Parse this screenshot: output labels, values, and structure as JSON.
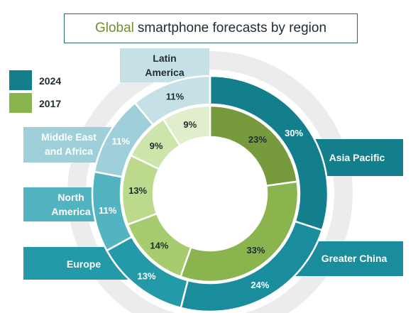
{
  "title": {
    "accent": "Global",
    "rest": "smartphone forecasts by region"
  },
  "colors": {
    "series_2024": "#137f8d",
    "series_2017": "#8ab54e"
  },
  "chart_data": {
    "type": "donut",
    "title": "Global smartphone forecasts by region",
    "categories": [
      "Asia Pacific",
      "Greater China",
      "Europe",
      "North America",
      "Middle East and Africa",
      "Latin America"
    ],
    "series": [
      {
        "name": "2024",
        "ring": "outer",
        "values": [
          30,
          24,
          13,
          11,
          11,
          11
        ],
        "labels": [
          "30%",
          "24%",
          "13%",
          "11%",
          "11%",
          "11%"
        ]
      },
      {
        "name": "2017",
        "ring": "inner",
        "values": [
          23,
          33,
          14,
          13,
          9,
          9
        ],
        "labels": [
          "23%",
          "33%",
          "14%",
          "13%",
          "9%",
          "9%"
        ]
      }
    ],
    "legend": {
      "placement": "top-left",
      "entries": [
        "2024",
        "2017"
      ]
    },
    "category_labels": {
      "asia_pacific": "Asia Pacific",
      "greater_china": "Greater China",
      "europe": "Europe",
      "north_america_1": "North",
      "north_america_2": "America",
      "mea_1": "Middle East",
      "mea_2": "and Africa",
      "latin_america_1": "Latin",
      "latin_america_2": "America"
    }
  }
}
